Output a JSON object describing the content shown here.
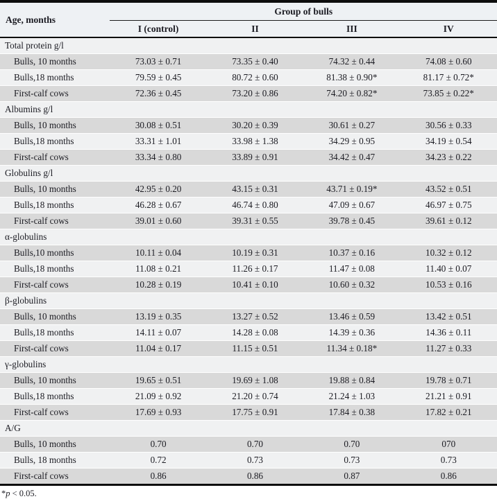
{
  "header": {
    "age_label": "Age, months",
    "group_label": "Group of bulls",
    "columns": [
      "I (control)",
      "II",
      "III",
      "IV"
    ]
  },
  "sections": [
    {
      "title": "Total protein g/l",
      "rows": [
        {
          "label": "Bulls, 10 months",
          "values": [
            "73.03 ± 0.71",
            "73.35 ± 0.40",
            "74.32 ± 0.44",
            "74.08 ± 0.60"
          ]
        },
        {
          "label": "Bulls,18 months",
          "values": [
            "79.59 ± 0.45",
            "80.72 ± 0.60",
            "81.38 ± 0.90*",
            "81.17 ± 0.72*"
          ]
        },
        {
          "label": "First-calf cows",
          "values": [
            "72.36 ± 0.45",
            "73.20 ± 0.86",
            "74.20 ± 0.82*",
            "73.85 ± 0.22*"
          ]
        }
      ]
    },
    {
      "title": "Albumins g/l",
      "rows": [
        {
          "label": "Bulls, 10 months",
          "values": [
            "30.08 ± 0.51",
            "30.20 ± 0.39",
            "30.61 ± 0.27",
            "30.56 ± 0.33"
          ]
        },
        {
          "label": "Bulls,18 months",
          "values": [
            "33.31 ± 1.01",
            "33.98 ± 1.38",
            "34.29 ± 0.95",
            "34.19 ± 0.54"
          ]
        },
        {
          "label": "First-calf cows",
          "values": [
            "33.34 ± 0.80",
            "33.89 ± 0.91",
            "34.42 ± 0.47",
            "34.23 ± 0.22"
          ]
        }
      ]
    },
    {
      "title": "Globulins g/l",
      "rows": [
        {
          "label": "Bulls, 10 months",
          "values": [
            "42.95 ± 0.20",
            "43.15 ± 0.31",
            "43.71 ± 0.19*",
            "43.52 ± 0.51"
          ]
        },
        {
          "label": "Bulls,18 months",
          "values": [
            "46.28 ± 0.67",
            "46.74 ± 0.80",
            "47.09 ± 0.67",
            "46.97 ± 0.75"
          ]
        },
        {
          "label": "First-calf cows",
          "values": [
            "39.01 ± 0.60",
            "39.31 ± 0.55",
            "39.78 ± 0.45",
            "39.61 ± 0.12"
          ]
        }
      ]
    },
    {
      "title": "α-globulins",
      "rows": [
        {
          "label": "Bulls,10 months",
          "values": [
            "10.11 ± 0.04",
            "10.19 ± 0.31",
            "10.37 ± 0.16",
            "10.32 ± 0.12"
          ]
        },
        {
          "label": "Bulls,18 months",
          "values": [
            "11.08 ± 0.21",
            "11.26 ± 0.17",
            "11.47 ± 0.08",
            "11.40 ± 0.07"
          ]
        },
        {
          "label": "First-calf cows",
          "values": [
            "10.28 ± 0.19",
            "10.41 ± 0.10",
            "10.60 ± 0.32",
            "10.53 ± 0.16"
          ]
        }
      ]
    },
    {
      "title": "β-globulins",
      "rows": [
        {
          "label": "Bulls, 10 months",
          "values": [
            "13.19 ± 0.35",
            "13.27 ± 0.52",
            "13.46 ± 0.59",
            "13.42 ± 0.51"
          ]
        },
        {
          "label": "Bulls,18 months",
          "values": [
            "14.11 ± 0.07",
            "14.28 ± 0.08",
            "14.39 ± 0.36",
            "14.36 ± 0.11"
          ]
        },
        {
          "label": "First-calf cows",
          "values": [
            "11.04 ± 0.17",
            "11.15 ± 0.51",
            "11.34 ± 0.18*",
            "11.27 ± 0.33"
          ]
        }
      ]
    },
    {
      "title": "γ-globulins",
      "rows": [
        {
          "label": "Bulls, 10 months",
          "values": [
            "19.65 ± 0.51",
            "19.69 ± 1.08",
            "19.88 ± 0.84",
            "19.78 ± 0.71"
          ]
        },
        {
          "label": "Bulls,18 months",
          "values": [
            "21.09 ± 0.92",
            "21.20 ± 0.74",
            "21.24 ± 1.03",
            "21.21 ± 0.91"
          ]
        },
        {
          "label": "First-calf cows",
          "values": [
            "17.69 ± 0.93",
            "17.75 ± 0.91",
            "17.84 ± 0.38",
            "17.82 ± 0.21"
          ]
        }
      ]
    },
    {
      "title": "A/G",
      "rows": [
        {
          "label": "Bulls, 10 months",
          "values": [
            "0.70",
            "0.70",
            "0.70",
            "070"
          ]
        },
        {
          "label": "Bulls, 18 months",
          "values": [
            "0.72",
            "0.73",
            "0.73",
            "0.73"
          ]
        },
        {
          "label": "First-calf cows",
          "values": [
            "0.86",
            "0.86",
            "0.87",
            "0.86"
          ]
        }
      ]
    }
  ],
  "footnote": {
    "marker": "*",
    "symbol": "p",
    "rest": " < 0.05."
  },
  "colors": {
    "header_bg": "#eef1f4",
    "row_gray": "#d9d9d9",
    "row_light": "#f0f1f2",
    "border": "#0d0d0d",
    "text": "#1b1b22"
  }
}
